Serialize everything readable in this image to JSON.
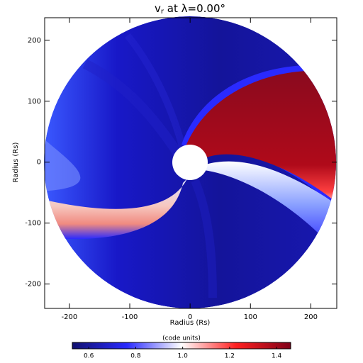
{
  "chart_data": {
    "type": "polar_heatmap",
    "title": {
      "main": "v",
      "subscript": "r",
      "rest": " at λ=0.00°"
    },
    "xlabel": "Radius (Rs)",
    "ylabel": "Radius (Rs)",
    "xlim": [
      -241,
      243
    ],
    "xticks": [
      -200,
      -100,
      0,
      100,
      200
    ],
    "ylim": [
      -240,
      237
    ],
    "yticks": [
      -200,
      -100,
      0,
      100,
      200
    ],
    "colorbar": {
      "label": "(code units)",
      "clim": [
        0.53,
        1.46
      ],
      "ticks": [
        0.6,
        0.8,
        {
          "value": 1,
          "label": "1.0"
        },
        1.2,
        1.4
      ],
      "colormap": [
        "#10106e",
        "#2a2aff",
        "#ffffff",
        "#ff2020",
        "#800018"
      ]
    }
  }
}
